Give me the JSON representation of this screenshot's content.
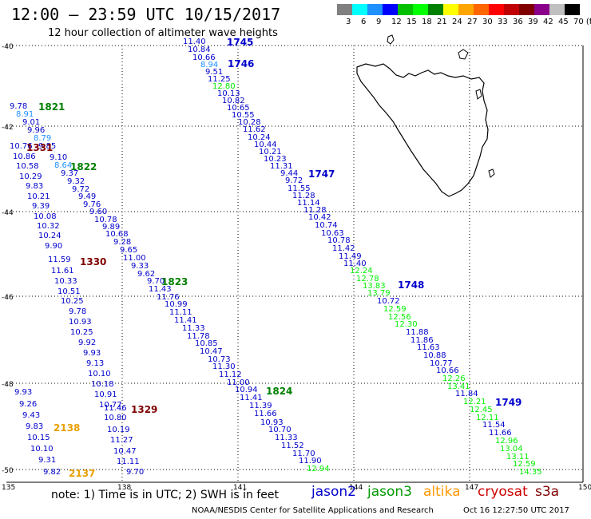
{
  "header": {
    "title": "12:00 – 23:59 UTC 10/15/2017",
    "subtitle": "12 hour collection of altimeter wave heights"
  },
  "legend": {
    "colors": [
      "#808080",
      "#00ffff",
      "#1e90ff",
      "#0000ff",
      "#00c000",
      "#00ff00",
      "#008000",
      "#ffff00",
      "#ffa500",
      "#ff6600",
      "#ff0000",
      "#c00000",
      "#800000",
      "#8b008b",
      "#c0c0c0",
      "#000000"
    ],
    "labels": [
      "3",
      "6",
      "9",
      "12",
      "15",
      "18",
      "21",
      "24",
      "27",
      "30",
      "33",
      "36",
      "39",
      "42",
      "45",
      "70 (ft)"
    ]
  },
  "map": {
    "lat_labels": [
      "-40",
      "-42",
      "-44",
      "-46",
      "-48",
      "-50"
    ],
    "lon_labels": [
      "135",
      "138",
      "141",
      "144",
      "147",
      "150"
    ]
  },
  "passes": [
    {
      "label": "1745",
      "color": "#0000cc",
      "anchor": [
        284,
        57
      ]
    },
    {
      "label": "1746",
      "color": "#0000cc",
      "anchor": [
        285,
        84
      ]
    },
    {
      "label": "1747",
      "color": "#0000cc",
      "anchor": [
        386,
        222
      ]
    },
    {
      "label": "1748",
      "color": "#0000cc",
      "anchor": [
        498,
        361
      ]
    },
    {
      "label": "1749",
      "color": "#0000cc",
      "anchor": [
        620,
        508
      ]
    },
    {
      "label": "1821",
      "color": "#008000",
      "anchor": [
        48,
        138
      ]
    },
    {
      "label": "1822",
      "color": "#008000",
      "anchor": [
        88,
        213
      ]
    },
    {
      "label": "1823",
      "color": "#008000",
      "anchor": [
        202,
        357
      ]
    },
    {
      "label": "1824",
      "color": "#008000",
      "anchor": [
        333,
        494
      ]
    },
    {
      "label": "1330",
      "color": "#7f0000",
      "anchor": [
        100,
        332
      ]
    },
    {
      "label": "1329",
      "color": "#7f0000",
      "anchor": [
        164,
        517
      ]
    },
    {
      "label": "1331",
      "color": "#7f0000",
      "anchor": [
        33,
        189
      ]
    },
    {
      "label": "2138",
      "color": "#e8a000",
      "anchor": [
        67,
        540
      ]
    },
    {
      "label": "2137",
      "color": "#e8a000",
      "anchor": [
        86,
        597
      ]
    }
  ],
  "observations": [
    {
      "v": "11.40",
      "c": "#0000cc",
      "p": [
        229,
        55
      ]
    },
    {
      "v": "10.84",
      "c": "#0000cc",
      "p": [
        235,
        65
      ]
    },
    {
      "v": "10.66",
      "c": "#0000cc",
      "p": [
        241,
        75
      ]
    },
    {
      "v": "8.94",
      "c": "#1e90ff",
      "p": [
        251,
        84
      ]
    },
    {
      "v": "9.51",
      "c": "#0000cc",
      "p": [
        257,
        93
      ]
    },
    {
      "v": "11.25",
      "c": "#0000cc",
      "p": [
        260,
        102
      ]
    },
    {
      "v": "12.80",
      "c": "#00ee00",
      "p": [
        266,
        111
      ]
    },
    {
      "v": "10.13",
      "c": "#0000cc",
      "p": [
        272,
        120
      ]
    },
    {
      "v": "10.82",
      "c": "#0000cc",
      "p": [
        278,
        129
      ]
    },
    {
      "v": "10.65",
      "c": "#0000cc",
      "p": [
        284,
        138
      ]
    },
    {
      "v": "10.55",
      "c": "#0000cc",
      "p": [
        290,
        147
      ]
    },
    {
      "v": "10.28",
      "c": "#0000cc",
      "p": [
        298,
        156
      ]
    },
    {
      "v": "11.62",
      "c": "#0000cc",
      "p": [
        304,
        165
      ]
    },
    {
      "v": "10.24",
      "c": "#0000cc",
      "p": [
        310,
        175
      ]
    },
    {
      "v": "10.44",
      "c": "#0000cc",
      "p": [
        318,
        184
      ]
    },
    {
      "v": "10.21",
      "c": "#0000cc",
      "p": [
        324,
        193
      ]
    },
    {
      "v": "10.23",
      "c": "#0000cc",
      "p": [
        330,
        202
      ]
    },
    {
      "v": "11.31",
      "c": "#0000cc",
      "p": [
        338,
        211
      ]
    },
    {
      "v": "9.44",
      "c": "#0000cc",
      "p": [
        351,
        220
      ]
    },
    {
      "v": "9.72",
      "c": "#0000cc",
      "p": [
        357,
        229
      ]
    },
    {
      "v": "11.55",
      "c": "#0000cc",
      "p": [
        360,
        239
      ]
    },
    {
      "v": "11.28",
      "c": "#0000cc",
      "p": [
        366,
        248
      ]
    },
    {
      "v": "11.14",
      "c": "#0000cc",
      "p": [
        372,
        257
      ]
    },
    {
      "v": "11.28",
      "c": "#0000cc",
      "p": [
        380,
        266
      ]
    },
    {
      "v": "10.42",
      "c": "#0000cc",
      "p": [
        386,
        275
      ]
    },
    {
      "v": "10.74",
      "c": "#0000cc",
      "p": [
        394,
        285
      ]
    },
    {
      "v": "10.63",
      "c": "#0000cc",
      "p": [
        402,
        295
      ]
    },
    {
      "v": "10.78",
      "c": "#0000cc",
      "p": [
        410,
        304
      ]
    },
    {
      "v": "11.42",
      "c": "#0000cc",
      "p": [
        416,
        314
      ]
    },
    {
      "v": "11.49",
      "c": "#0000cc",
      "p": [
        424,
        324
      ]
    },
    {
      "v": "11.40",
      "c": "#0000cc",
      "p": [
        430,
        333
      ]
    },
    {
      "v": "12.24",
      "c": "#00ee00",
      "p": [
        438,
        342
      ]
    },
    {
      "v": "12.78",
      "c": "#00ee00",
      "p": [
        446,
        352
      ]
    },
    {
      "v": "13.83",
      "c": "#00ee00",
      "p": [
        454,
        361
      ]
    },
    {
      "v": "13.79",
      "c": "#00ee00",
      "p": [
        460,
        370
      ]
    },
    {
      "v": "10.72",
      "c": "#0000cc",
      "p": [
        472,
        380
      ]
    },
    {
      "v": "12.59",
      "c": "#00ee00",
      "p": [
        480,
        390
      ]
    },
    {
      "v": "12.56",
      "c": "#00ee00",
      "p": [
        486,
        400
      ]
    },
    {
      "v": "12.30",
      "c": "#00ee00",
      "p": [
        494,
        409
      ]
    },
    {
      "v": "11.88",
      "c": "#0000cc",
      "p": [
        508,
        419
      ]
    },
    {
      "v": "11.86",
      "c": "#0000cc",
      "p": [
        514,
        429
      ]
    },
    {
      "v": "11.63",
      "c": "#0000cc",
      "p": [
        522,
        438
      ]
    },
    {
      "v": "10.88",
      "c": "#0000cc",
      "p": [
        530,
        448
      ]
    },
    {
      "v": "10.77",
      "c": "#0000cc",
      "p": [
        538,
        458
      ]
    },
    {
      "v": "10.66",
      "c": "#0000cc",
      "p": [
        546,
        467
      ]
    },
    {
      "v": "12.26",
      "c": "#00ee00",
      "p": [
        554,
        477
      ]
    },
    {
      "v": "13.41",
      "c": "#00ee00",
      "p": [
        560,
        487
      ]
    },
    {
      "v": "11.84",
      "c": "#0000cc",
      "p": [
        570,
        496
      ]
    },
    {
      "v": "12.21",
      "c": "#00ee00",
      "p": [
        580,
        506
      ]
    },
    {
      "v": "12.45",
      "c": "#00ee00",
      "p": [
        588,
        516
      ]
    },
    {
      "v": "12.11",
      "c": "#00ee00",
      "p": [
        596,
        526
      ]
    },
    {
      "v": "11.54",
      "c": "#0000cc",
      "p": [
        604,
        535
      ]
    },
    {
      "v": "11.66",
      "c": "#0000cc",
      "p": [
        612,
        545
      ]
    },
    {
      "v": "12.96",
      "c": "#00ee00",
      "p": [
        620,
        555
      ]
    },
    {
      "v": "13.04",
      "c": "#00ee00",
      "p": [
        626,
        565
      ]
    },
    {
      "v": "13.11",
      "c": "#00ee00",
      "p": [
        634,
        575
      ]
    },
    {
      "v": "12.59",
      "c": "#00ee00",
      "p": [
        642,
        584
      ]
    },
    {
      "v": "14.35",
      "c": "#00ee00",
      "p": [
        650,
        594
      ]
    },
    {
      "v": "9.78",
      "c": "#0000cc",
      "p": [
        12,
        136
      ]
    },
    {
      "v": "8.91",
      "c": "#1e90ff",
      "p": [
        20,
        146
      ]
    },
    {
      "v": "9.01",
      "c": "#0000cc",
      "p": [
        28,
        156
      ]
    },
    {
      "v": "9.96",
      "c": "#0000cc",
      "p": [
        34,
        166
      ]
    },
    {
      "v": "8.79",
      "c": "#1e90ff",
      "p": [
        42,
        176
      ]
    },
    {
      "v": "9.85",
      "c": "#0000cc",
      "p": [
        48,
        186
      ]
    },
    {
      "v": "10.76",
      "c": "#0000cc",
      "p": [
        12,
        186
      ]
    },
    {
      "v": "9.10",
      "c": "#0000cc",
      "p": [
        62,
        200
      ]
    },
    {
      "v": "10.86",
      "c": "#0000cc",
      "p": [
        16,
        199
      ]
    },
    {
      "v": "8.64",
      "c": "#1e90ff",
      "p": [
        68,
        210
      ]
    },
    {
      "v": "10.58",
      "c": "#0000cc",
      "p": [
        20,
        211
      ]
    },
    {
      "v": "9.37",
      "c": "#0000cc",
      "p": [
        76,
        220
      ]
    },
    {
      "v": "10.29",
      "c": "#0000cc",
      "p": [
        24,
        224
      ]
    },
    {
      "v": "9.32",
      "c": "#0000cc",
      "p": [
        84,
        230
      ]
    },
    {
      "v": "9.83",
      "c": "#0000cc",
      "p": [
        32,
        236
      ]
    },
    {
      "v": "9.72",
      "c": "#0000cc",
      "p": [
        90,
        240
      ]
    },
    {
      "v": "10.21",
      "c": "#0000cc",
      "p": [
        34,
        249
      ]
    },
    {
      "v": "9.49",
      "c": "#0000cc",
      "p": [
        98,
        249
      ]
    },
    {
      "v": "9.39",
      "c": "#0000cc",
      "p": [
        40,
        261
      ]
    },
    {
      "v": "9.76",
      "c": "#0000cc",
      "p": [
        104,
        259
      ]
    },
    {
      "v": "9.60",
      "c": "#0000cc",
      "p": [
        112,
        268
      ]
    },
    {
      "v": "10.08",
      "c": "#0000cc",
      "p": [
        42,
        274
      ]
    },
    {
      "v": "10.78",
      "c": "#0000cc",
      "p": [
        118,
        278
      ]
    },
    {
      "v": "10.32",
      "c": "#0000cc",
      "p": [
        46,
        286
      ]
    },
    {
      "v": "9.89",
      "c": "#0000cc",
      "p": [
        128,
        287
      ]
    },
    {
      "v": "10.24",
      "c": "#0000cc",
      "p": [
        48,
        298
      ]
    },
    {
      "v": "10.68",
      "c": "#0000cc",
      "p": [
        132,
        296
      ]
    },
    {
      "v": "9.28",
      "c": "#0000cc",
      "p": [
        142,
        306
      ]
    },
    {
      "v": "9.90",
      "c": "#0000cc",
      "p": [
        56,
        311
      ]
    },
    {
      "v": "9.65",
      "c": "#0000cc",
      "p": [
        150,
        316
      ]
    },
    {
      "v": "11.00",
      "c": "#0000cc",
      "p": [
        154,
        326
      ]
    },
    {
      "v": "11.59",
      "c": "#0000cc",
      "p": [
        60,
        328
      ]
    },
    {
      "v": "9.33",
      "c": "#0000cc",
      "p": [
        164,
        336
      ]
    },
    {
      "v": "11.61",
      "c": "#0000cc",
      "p": [
        64,
        342
      ]
    },
    {
      "v": "9.62",
      "c": "#0000cc",
      "p": [
        172,
        346
      ]
    },
    {
      "v": "10.33",
      "c": "#0000cc",
      "p": [
        68,
        355
      ]
    },
    {
      "v": "9.70",
      "c": "#0000cc",
      "p": [
        184,
        355
      ]
    },
    {
      "v": "11.43",
      "c": "#0000cc",
      "p": [
        186,
        365
      ]
    },
    {
      "v": "10.51",
      "c": "#0000cc",
      "p": [
        72,
        368
      ]
    },
    {
      "v": "11.76",
      "c": "#0000cc",
      "p": [
        196,
        375
      ]
    },
    {
      "v": "10.25",
      "c": "#0000cc",
      "p": [
        76,
        380
      ]
    },
    {
      "v": "10.99",
      "c": "#0000cc",
      "p": [
        206,
        384
      ]
    },
    {
      "v": "9.78",
      "c": "#0000cc",
      "p": [
        86,
        393
      ]
    },
    {
      "v": "11.11",
      "c": "#0000cc",
      "p": [
        212,
        394
      ]
    },
    {
      "v": "10.93",
      "c": "#0000cc",
      "p": [
        86,
        406
      ]
    },
    {
      "v": "11.41",
      "c": "#0000cc",
      "p": [
        218,
        404
      ]
    },
    {
      "v": "11.33",
      "c": "#0000cc",
      "p": [
        228,
        414
      ]
    },
    {
      "v": "10.25",
      "c": "#0000cc",
      "p": [
        88,
        419
      ]
    },
    {
      "v": "11.78",
      "c": "#0000cc",
      "p": [
        234,
        424
      ]
    },
    {
      "v": "9.92",
      "c": "#0000cc",
      "p": [
        98,
        432
      ]
    },
    {
      "v": "10.85",
      "c": "#0000cc",
      "p": [
        244,
        433
      ]
    },
    {
      "v": "10.47",
      "c": "#0000cc",
      "p": [
        250,
        443
      ]
    },
    {
      "v": "9.93",
      "c": "#0000cc",
      "p": [
        104,
        445
      ]
    },
    {
      "v": "10.73",
      "c": "#0000cc",
      "p": [
        260,
        453
      ]
    },
    {
      "v": "9.13",
      "c": "#0000cc",
      "p": [
        108,
        458
      ]
    },
    {
      "v": "11.30",
      "c": "#0000cc",
      "p": [
        266,
        462
      ]
    },
    {
      "v": "10.10",
      "c": "#0000cc",
      "p": [
        110,
        471
      ]
    },
    {
      "v": "11.12",
      "c": "#0000cc",
      "p": [
        274,
        472
      ]
    },
    {
      "v": "11.00",
      "c": "#0000cc",
      "p": [
        284,
        482
      ]
    },
    {
      "v": "10.18",
      "c": "#0000cc",
      "p": [
        114,
        484
      ]
    },
    {
      "v": "10.94",
      "c": "#0000cc",
      "p": [
        294,
        491
      ]
    },
    {
      "v": "9.93",
      "c": "#0000cc",
      "p": [
        18,
        494
      ]
    },
    {
      "v": "10.91",
      "c": "#0000cc",
      "p": [
        118,
        497
      ]
    },
    {
      "v": "11.41",
      "c": "#0000cc",
      "p": [
        300,
        501
      ]
    },
    {
      "v": "9.26",
      "c": "#0000cc",
      "p": [
        24,
        509
      ]
    },
    {
      "v": "10.77",
      "c": "#0000cc",
      "p": [
        124,
        510
      ]
    },
    {
      "v": "11.46",
      "c": "#0000cc",
      "p": [
        130,
        514
      ]
    },
    {
      "v": "11.39",
      "c": "#0000cc",
      "p": [
        312,
        511
      ]
    },
    {
      "v": "9.43",
      "c": "#0000cc",
      "p": [
        28,
        523
      ]
    },
    {
      "v": "10.80",
      "c": "#0000cc",
      "p": [
        130,
        526
      ]
    },
    {
      "v": "11.66",
      "c": "#0000cc",
      "p": [
        318,
        521
      ]
    },
    {
      "v": "10.93",
      "c": "#0000cc",
      "p": [
        326,
        532
      ]
    },
    {
      "v": "9.83",
      "c": "#0000cc",
      "p": [
        32,
        537
      ]
    },
    {
      "v": "10.19",
      "c": "#0000cc",
      "p": [
        134,
        541
      ]
    },
    {
      "v": "10.70",
      "c": "#0000cc",
      "p": [
        336,
        541
      ]
    },
    {
      "v": "10.15",
      "c": "#0000cc",
      "p": [
        34,
        551
      ]
    },
    {
      "v": "11.27",
      "c": "#0000cc",
      "p": [
        138,
        554
      ]
    },
    {
      "v": "11.33",
      "c": "#0000cc",
      "p": [
        344,
        551
      ]
    },
    {
      "v": "11.52",
      "c": "#0000cc",
      "p": [
        352,
        561
      ]
    },
    {
      "v": "10.10",
      "c": "#0000cc",
      "p": [
        38,
        565
      ]
    },
    {
      "v": "10.47",
      "c": "#0000cc",
      "p": [
        142,
        568
      ]
    },
    {
      "v": "11.70",
      "c": "#0000cc",
      "p": [
        366,
        571
      ]
    },
    {
      "v": "9.31",
      "c": "#0000cc",
      "p": [
        48,
        579
      ]
    },
    {
      "v": "11.11",
      "c": "#0000cc",
      "p": [
        146,
        581
      ]
    },
    {
      "v": "11.90",
      "c": "#0000cc",
      "p": [
        374,
        580
      ]
    },
    {
      "v": "9.82",
      "c": "#0000cc",
      "p": [
        54,
        594
      ]
    },
    {
      "v": "9.70",
      "c": "#0000cc",
      "p": [
        158,
        594
      ]
    },
    {
      "v": "12.94",
      "c": "#00ee00",
      "p": [
        384,
        590
      ]
    }
  ],
  "note": {
    "text": "note:  1) Time is in UTC;  2) SWH is in feet"
  },
  "satellites": [
    {
      "name": "jason2",
      "color": "#0000cc"
    },
    {
      "name": "jason3",
      "color": "#009900"
    },
    {
      "name": "altika",
      "color": "#ff9900"
    },
    {
      "name": "cryosat",
      "color": "#cc0000"
    },
    {
      "name": "s3a",
      "color": "#800000"
    }
  ],
  "footer": {
    "credit": "NOAA/NESDIS Center for Satellite Applications and Research",
    "timestamp": "Oct 16 12:27:50 UTC 2017"
  }
}
